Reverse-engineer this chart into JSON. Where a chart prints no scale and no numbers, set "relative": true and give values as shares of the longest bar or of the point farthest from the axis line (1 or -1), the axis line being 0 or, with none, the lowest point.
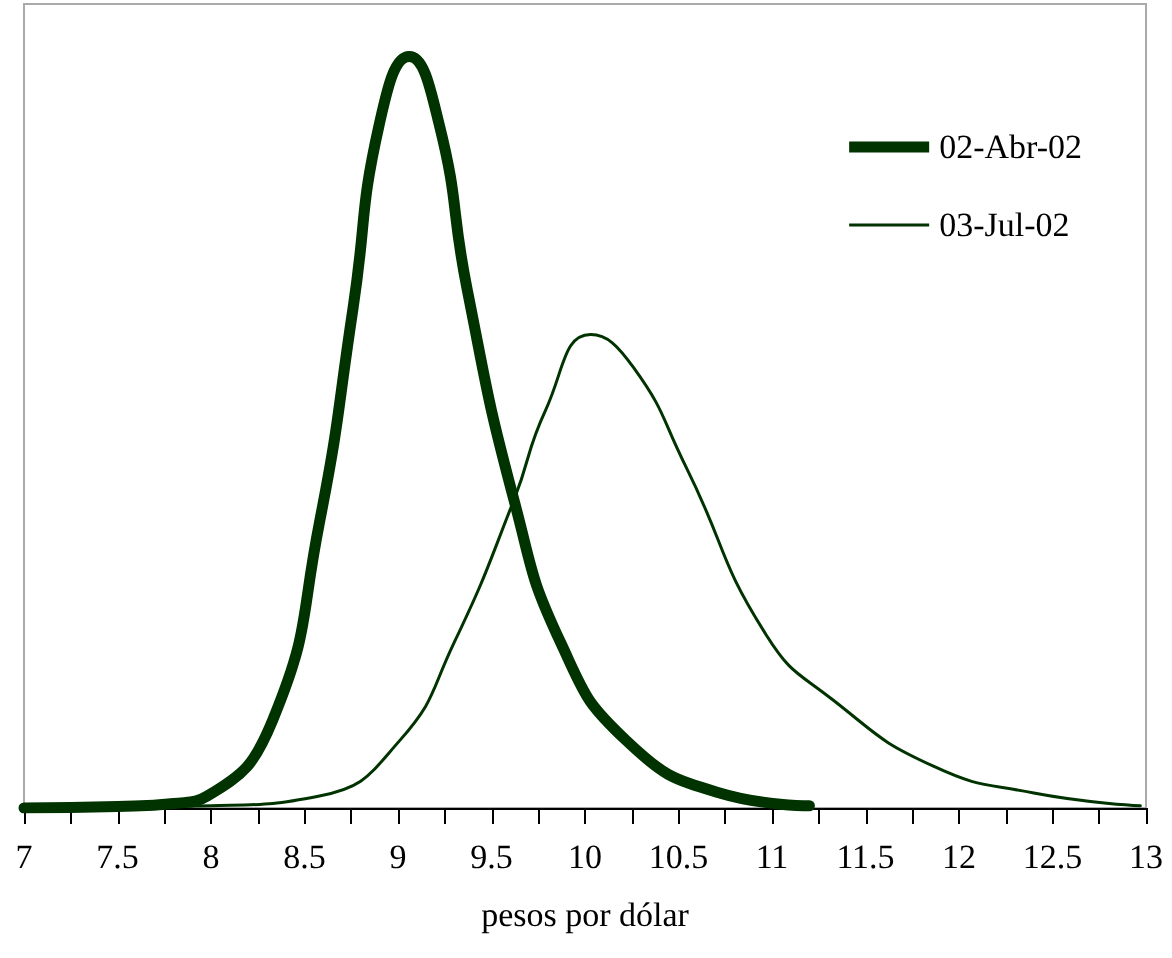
{
  "chart_data": {
    "type": "line",
    "relative": true,
    "xlabel": "pesos por dólar",
    "xlim": [
      7,
      13
    ],
    "xticks": [
      7,
      {
        "value": 7.25,
        "label": null
      },
      7.5,
      {
        "value": 7.75,
        "label": null
      },
      8,
      {
        "value": 8.25,
        "label": null
      },
      8.5,
      {
        "value": 8.75,
        "label": null
      },
      9,
      {
        "value": 9.25,
        "label": null
      },
      9.5,
      {
        "value": 9.75,
        "label": null
      },
      10,
      {
        "value": 10.25,
        "label": null
      },
      10.5,
      {
        "value": 10.75,
        "label": null
      },
      11,
      {
        "value": 11.25,
        "label": null
      },
      11.5,
      {
        "value": 11.75,
        "label": null
      },
      12,
      {
        "value": 12.25,
        "label": null
      },
      12.5,
      {
        "value": 12.75,
        "label": null
      },
      13
    ],
    "legend": "top right",
    "grid": false,
    "marker": "none",
    "line_style": "solid",
    "series": [
      {
        "name": "02-Abr-02",
        "color": "#003300",
        "x": [
          7,
          7.5,
          7.8,
          7.98,
          8.33,
          8.58,
          8.76,
          8.9,
          9.06,
          9.22,
          9.37,
          9.62,
          9.87,
          10.22,
          10.72,
          11.2
        ],
        "values": [
          0,
          0.002,
          0.006,
          0.016,
          0.117,
          0.38,
          0.666,
          0.91,
          1,
          0.91,
          0.69,
          0.41,
          0.22,
          0.09,
          0.02,
          0.003
        ]
      },
      {
        "name": "03-Jul-02",
        "color": "#003300",
        "x": [
          7,
          8,
          8.58,
          9.01,
          9.3,
          9.62,
          9.79,
          10.03,
          10.26,
          10.54,
          10.97,
          11.33,
          11.86,
          12.4,
          12.97
        ],
        "values": [
          0,
          0.003,
          0.016,
          0.09,
          0.22,
          0.41,
          0.53,
          0.63,
          0.586,
          0.454,
          0.23,
          0.143,
          0.056,
          0.02,
          0.003
        ]
      }
    ]
  }
}
